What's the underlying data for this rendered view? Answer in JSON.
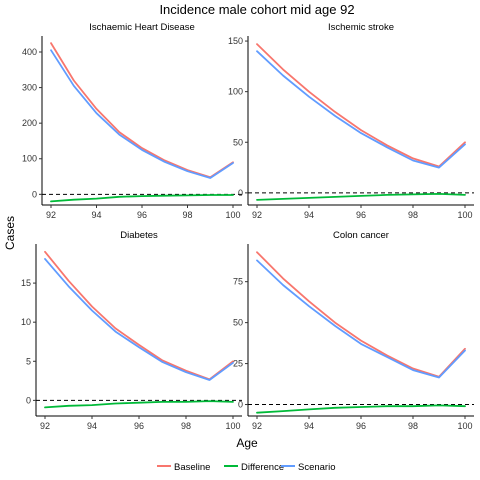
{
  "title": "Incidence male cohort mid age 92",
  "xlabel": "Age",
  "ylabel": "Cases",
  "legend": {
    "position": "bottom",
    "items": [
      {
        "label": "Baseline",
        "color": "#F8766D"
      },
      {
        "label": "Difference",
        "color": "#00BA38"
      },
      {
        "label": "Scenario",
        "color": "#619CFF"
      }
    ]
  },
  "colors": {
    "Baseline": "#F8766D",
    "Difference": "#00BA38",
    "Scenario": "#619CFF"
  },
  "chart_data": [
    {
      "type": "line",
      "title": "Ischaemic Heart Disease",
      "x": [
        92,
        93,
        94,
        95,
        96,
        97,
        98,
        99,
        100
      ],
      "series": [
        {
          "name": "Baseline",
          "values": [
            425,
            320,
            240,
            175,
            130,
            95,
            68,
            48,
            90
          ]
        },
        {
          "name": "Scenario",
          "values": [
            405,
            305,
            228,
            168,
            125,
            91,
            65,
            46,
            88
          ]
        },
        {
          "name": "Difference",
          "values": [
            -20,
            -15,
            -12,
            -7,
            -5,
            -4,
            -3,
            -2,
            -2
          ]
        }
      ],
      "xticks": [
        "92",
        "94",
        "96",
        "98",
        "100"
      ],
      "yticks": [
        "0",
        "100",
        "200",
        "300",
        "400"
      ],
      "reference_line": 0,
      "ylim": [
        -30,
        445
      ]
    },
    {
      "type": "line",
      "title": "Ischemic stroke",
      "x": [
        92,
        93,
        94,
        95,
        96,
        97,
        98,
        99,
        100
      ],
      "series": [
        {
          "name": "Baseline",
          "values": [
            147,
            122,
            100,
            80,
            62,
            47,
            34,
            26,
            50
          ]
        },
        {
          "name": "Scenario",
          "values": [
            140,
            116,
            95,
            76,
            59,
            45,
            32,
            25,
            48
          ]
        },
        {
          "name": "Difference",
          "values": [
            -7,
            -6,
            -5,
            -4,
            -3,
            -2,
            -1.5,
            -1,
            -2
          ]
        }
      ],
      "xticks": [
        "92",
        "94",
        "96",
        "98",
        "100"
      ],
      "yticks": [
        "0",
        "50",
        "100",
        "150"
      ],
      "reference_line": 0,
      "ylim": [
        -12,
        155
      ]
    },
    {
      "type": "line",
      "title": "Diabetes",
      "x": [
        92,
        93,
        94,
        95,
        96,
        97,
        98,
        99,
        100
      ],
      "series": [
        {
          "name": "Baseline",
          "values": [
            19,
            15.3,
            12,
            9.2,
            7.1,
            5.1,
            3.8,
            2.7,
            5
          ]
        },
        {
          "name": "Scenario",
          "values": [
            18.1,
            14.6,
            11.5,
            8.8,
            6.8,
            4.9,
            3.6,
            2.6,
            4.8
          ]
        },
        {
          "name": "Difference",
          "values": [
            -0.9,
            -0.7,
            -0.6,
            -0.4,
            -0.3,
            -0.2,
            -0.2,
            -0.1,
            -0.2
          ]
        }
      ],
      "xticks": [
        "92",
        "94",
        "96",
        "98",
        "100"
      ],
      "yticks": [
        "0",
        "5",
        "10",
        "15"
      ],
      "reference_line": 0,
      "ylim": [
        -2,
        20
      ]
    },
    {
      "type": "line",
      "title": "Colon cancer",
      "x": [
        92,
        93,
        94,
        95,
        96,
        97,
        98,
        99,
        100
      ],
      "series": [
        {
          "name": "Baseline",
          "values": [
            93,
            77,
            63,
            50,
            39,
            30,
            22,
            17,
            34
          ]
        },
        {
          "name": "Scenario",
          "values": [
            88,
            73,
            60,
            48,
            37,
            29,
            21,
            16.5,
            33
          ]
        },
        {
          "name": "Difference",
          "values": [
            -5,
            -4,
            -3,
            -2,
            -1.5,
            -1,
            -1,
            -0.5,
            -1
          ]
        }
      ],
      "xticks": [
        "92",
        "94",
        "96",
        "98",
        "100"
      ],
      "yticks": [
        "0",
        "25",
        "50",
        "75"
      ],
      "reference_line": 0,
      "ylim": [
        -7,
        98
      ]
    }
  ]
}
